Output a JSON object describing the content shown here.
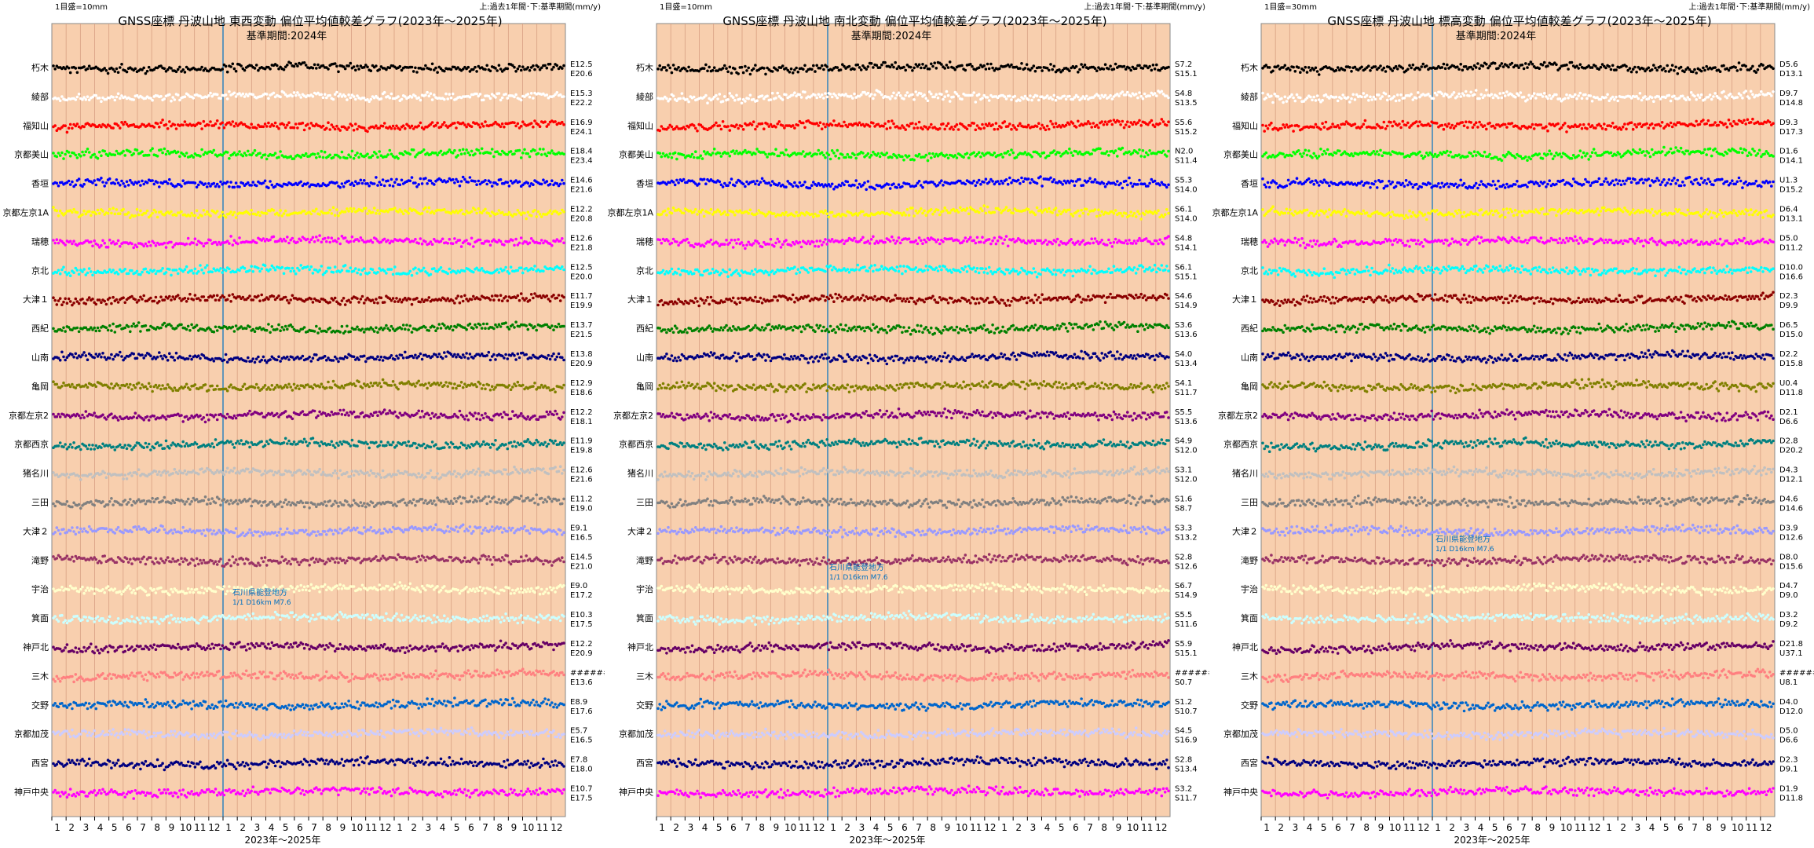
{
  "page": {
    "months_per_panel": 36,
    "month_ticks": [
      "1",
      "2",
      "3",
      "4",
      "5",
      "6",
      "7",
      "8",
      "9",
      "10",
      "11",
      "12",
      "1",
      "2",
      "3",
      "4",
      "5",
      "6",
      "7",
      "8",
      "9",
      "10",
      "11",
      "12",
      "1",
      "2",
      "3",
      "4",
      "5",
      "6",
      "7",
      "8",
      "9",
      "10",
      "11",
      "12"
    ],
    "xlabel": "2023年～2025年"
  },
  "stations": [
    "朽木",
    "綾部",
    "福知山",
    "京都美山",
    "香垣",
    "京都左京1A",
    "瑞穂",
    "京北",
    "大津１",
    "西紀",
    "山南",
    "亀岡",
    "京都左京2",
    "京都西京",
    "猪名川",
    "三田",
    "大津２",
    "滝野",
    "宇治",
    "箕面",
    "神戸北",
    "三木",
    "交野",
    "京都加茂",
    "西宮",
    "神戸中央"
  ],
  "series_colors": [
    "#000000",
    "#ffffff",
    "#ff0000",
    "#00ff00",
    "#0000ff",
    "#ffff00",
    "#ff00ff",
    "#00ffff",
    "#8b0000",
    "#008000",
    "#000080",
    "#808000",
    "#800080",
    "#008080",
    "#c0c0c0",
    "#808080",
    "#9999ff",
    "#993366",
    "#ffffcc",
    "#ccffff",
    "#660066",
    "#ff8080",
    "#0066cc",
    "#ccccff",
    "#000080",
    "#ff00ff"
  ],
  "colors": {
    "panel_bg": "#f8cfae",
    "grid": "#d89f82",
    "ref_line": "#0070c0",
    "annotation": "#0070c0"
  },
  "chart_data": [
    {
      "type": "scatter",
      "component": "東西変動",
      "scale_label": "1目盛=10mm",
      "ref_label": "上:過去1年間･下:基準期間(mm/y)",
      "title": "GNSS座標 丹波山地 東西変動 偏位平均値較差グラフ(2023年～2025年)",
      "subtitle": "基準期間:2024年",
      "xlabel": "2023年～2025年",
      "annotation": [
        "石川県能登地方",
        "1/1 D16km M7.6"
      ],
      "rates_upper": [
        "E12.5",
        "E15.3",
        "E16.9",
        "E18.4",
        "E14.6",
        "E12.2",
        "E12.6",
        "E12.5",
        "E11.7",
        "E13.7",
        "E13.8",
        "E12.9",
        "E12.2",
        "E11.9",
        "E12.6",
        "E11.2",
        "E9.1",
        "E14.5",
        "E9.0",
        "E10.3",
        "E12.2",
        "######",
        "E8.9",
        "E5.7",
        "E7.8",
        "E10.7"
      ],
      "rates_lower": [
        "E20.6",
        "E22.2",
        "E24.1",
        "E23.4",
        "E21.6",
        "E20.8",
        "E21.8",
        "E20.0",
        "E19.9",
        "E21.5",
        "E20.9",
        "E18.6",
        "E18.1",
        "E19.8",
        "E21.6",
        "E19.0",
        "E16.5",
        "E21.0",
        "E17.2",
        "E17.5",
        "E20.9",
        "E13.6",
        "E17.6",
        "E16.5",
        "E18.0",
        "E17.5"
      ]
    },
    {
      "type": "scatter",
      "component": "南北変動",
      "scale_label": "1目盛=10mm",
      "ref_label": "上:過去1年間･下:基準期間(mm/y)",
      "title": "GNSS座標 丹波山地 南北変動 偏位平均値較差グラフ(2023年～2025年)",
      "subtitle": "基準期間:2024年",
      "xlabel": "2023年～2025年",
      "annotation": [
        "石川県能登地方",
        "1/1 D16km M7.6"
      ],
      "rates_upper": [
        "S7.2",
        "S4.8",
        "S5.6",
        "N2.0",
        "S5.3",
        "S6.1",
        "S4.8",
        "S6.1",
        "S4.6",
        "S3.6",
        "S4.0",
        "S4.1",
        "S5.5",
        "S4.9",
        "S3.1",
        "S1.6",
        "S3.3",
        "S2.8",
        "S6.7",
        "S5.5",
        "S5.9",
        "######",
        "S1.2",
        "S4.5",
        "S2.8",
        "S3.2"
      ],
      "rates_lower": [
        "S15.1",
        "S13.5",
        "S15.2",
        "S11.4",
        "S14.0",
        "S14.0",
        "S14.1",
        "S15.1",
        "S14.9",
        "S13.6",
        "S13.4",
        "S11.7",
        "S13.6",
        "S12.0",
        "S12.0",
        "S8.7",
        "S13.2",
        "S12.6",
        "S14.9",
        "S11.6",
        "S15.1",
        "S0.7",
        "S10.7",
        "S16.9",
        "S13.4",
        "S11.7"
      ]
    },
    {
      "type": "scatter",
      "component": "標高変動",
      "scale_label": "1目盛=30mm",
      "ref_label": "上:過去1年間･下:基準期間(mm/y)",
      "title": "GNSS座標 丹波山地 標高変動 偏位平均値較差グラフ(2023年～2025年)",
      "subtitle": "基準期間:2024年",
      "xlabel": "2023年～2025年",
      "annotation": [
        "石川県能登地方",
        "1/1 D16km M7.6"
      ],
      "rates_upper": [
        "D5.6",
        "D9.7",
        "D9.3",
        "D1.6",
        "U1.3",
        "D6.4",
        "D5.0",
        "D10.0",
        "D2.3",
        "D6.5",
        "D2.2",
        "U0.4",
        "D2.1",
        "D2.8",
        "D4.3",
        "D4.6",
        "D3.9",
        "D8.0",
        "D4.7",
        "D3.2",
        "D21.8",
        "######",
        "D4.0",
        "D5.0",
        "D2.3",
        "D1.9"
      ],
      "rates_lower": [
        "D13.1",
        "D14.8",
        "D17.3",
        "D14.1",
        "D15.2",
        "D13.1",
        "D11.2",
        "D16.6",
        "D9.9",
        "D15.0",
        "D15.8",
        "D11.8",
        "D6.6",
        "D20.2",
        "D12.1",
        "D14.6",
        "D12.6",
        "D15.6",
        "D9.0",
        "D9.2",
        "U37.1",
        "U8.1",
        "D12.0",
        "D6.6",
        "D9.1",
        "D11.8"
      ]
    }
  ]
}
